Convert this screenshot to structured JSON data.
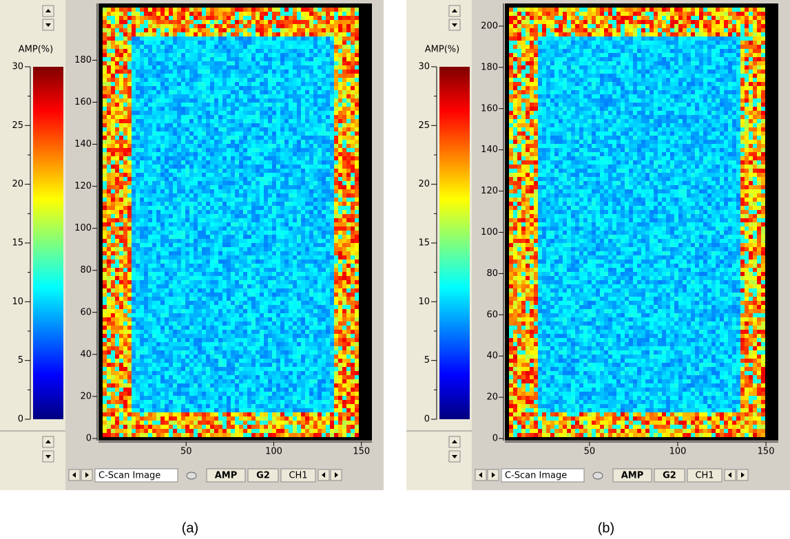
{
  "panels": [
    {
      "colorbar": {
        "label": "AMP(%)",
        "lim": [
          0,
          30
        ],
        "ticks": [
          0,
          5,
          10,
          15,
          20,
          25,
          30
        ]
      },
      "y_axis": {
        "lim": [
          -1,
          207
        ],
        "ticks": [
          0,
          20,
          40,
          60,
          80,
          100,
          120,
          140,
          160,
          180
        ]
      },
      "x_axis": {
        "lim": [
          0,
          156
        ],
        "ticks": [
          50,
          100,
          150
        ]
      },
      "toolbar": {
        "view": "C-Scan Image",
        "buttons": [
          "AMP",
          "G2",
          "CH1"
        ]
      },
      "caption": "(a)"
    },
    {
      "colorbar": {
        "label": "AMP(%)",
        "lim": [
          0,
          30
        ],
        "ticks": [
          0,
          5,
          10,
          15,
          20,
          25,
          30
        ]
      },
      "y_axis": {
        "lim": [
          -1,
          211
        ],
        "ticks": [
          0,
          20,
          40,
          60,
          80,
          100,
          120,
          140,
          160,
          180,
          200
        ]
      },
      "x_axis": {
        "lim": [
          2,
          157
        ],
        "ticks": [
          50,
          100,
          150
        ]
      },
      "toolbar": {
        "view": "C-Scan Image",
        "buttons": [
          "AMP",
          "G2",
          "CH1"
        ]
      },
      "caption": "(b)"
    }
  ]
}
